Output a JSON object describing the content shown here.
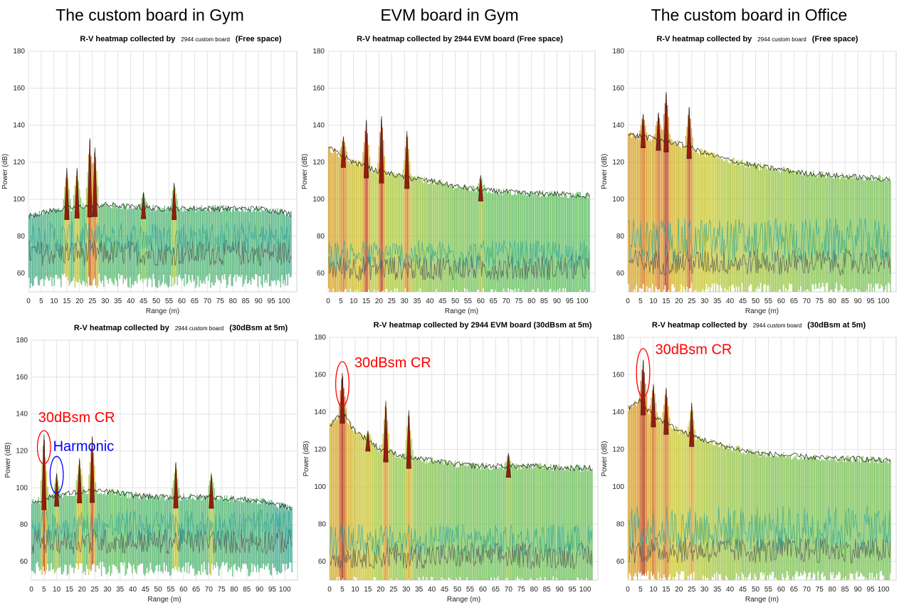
{
  "column_titles": [
    "The custom board in Gym",
    "EVM board in Gym",
    "The custom board in Office"
  ],
  "chart_data": [
    {
      "type": "area",
      "title_left": "R-V heatmap collected by",
      "title_small": "2944 custom board",
      "title_right": "(Free space)",
      "xlabel": "Range (m)",
      "ylabel": "Power (dB)",
      "xlim": [
        0,
        105
      ],
      "ylim": [
        50,
        180
      ],
      "xticks": [
        0,
        5,
        10,
        15,
        20,
        25,
        30,
        35,
        40,
        45,
        50,
        55,
        60,
        65,
        70,
        75,
        80,
        85,
        90,
        95,
        100
      ],
      "yticks": [
        60,
        80,
        100,
        120,
        140,
        160,
        180
      ],
      "grid": true,
      "envelope": {
        "x": [
          0,
          10,
          20,
          30,
          40,
          50,
          60,
          70,
          80,
          90,
          100,
          103
        ],
        "y": [
          91,
          94,
          96,
          97,
          96,
          95,
          95,
          95,
          95,
          95,
          93,
          92
        ]
      },
      "peaks": [
        {
          "x": 15,
          "y": 117
        },
        {
          "x": 19,
          "y": 117
        },
        {
          "x": 24,
          "y": 133
        },
        {
          "x": 26,
          "y": 128
        },
        {
          "x": 57,
          "y": 109
        },
        {
          "x": 45,
          "y": 104
        }
      ],
      "noise_level": [
        70,
        88
      ],
      "annotations": []
    },
    {
      "type": "area",
      "title_left": "R-V heatmap collected by 2944 EVM board (Free space)",
      "title_small": "",
      "title_right": "",
      "xlabel": "Range (m)",
      "ylabel": "Power (dB)",
      "xlim": [
        0,
        105
      ],
      "ylim": [
        50,
        180
      ],
      "xticks": [
        0,
        5,
        10,
        15,
        20,
        25,
        30,
        35,
        40,
        45,
        50,
        55,
        60,
        65,
        70,
        75,
        80,
        85,
        90,
        95,
        100
      ],
      "yticks": [
        60,
        80,
        100,
        120,
        140,
        160,
        180
      ],
      "grid": true,
      "envelope": {
        "x": [
          0,
          5,
          10,
          20,
          30,
          40,
          50,
          60,
          70,
          80,
          90,
          100,
          103
        ],
        "y": [
          128,
          124,
          120,
          115,
          112,
          110,
          107,
          105,
          104,
          103,
          103,
          102,
          102
        ]
      },
      "peaks": [
        {
          "x": 15,
          "y": 143
        },
        {
          "x": 21,
          "y": 145
        },
        {
          "x": 31,
          "y": 137
        },
        {
          "x": 6,
          "y": 134
        },
        {
          "x": 60,
          "y": 113
        }
      ],
      "noise_level": [
        62,
        78
      ],
      "annotations": []
    },
    {
      "type": "area",
      "title_left": "R-V heatmap collected by",
      "title_small": "2944 custom board",
      "title_right": "(Free space)",
      "xlabel": "Range (m)",
      "ylabel": "Power (dB)",
      "xlim": [
        0,
        105
      ],
      "ylim": [
        50,
        180
      ],
      "xticks": [
        0,
        5,
        10,
        15,
        20,
        25,
        30,
        35,
        40,
        45,
        50,
        55,
        60,
        65,
        70,
        75,
        80,
        85,
        90,
        95,
        100
      ],
      "yticks": [
        60,
        80,
        100,
        120,
        140,
        160,
        180
      ],
      "grid": true,
      "envelope": {
        "x": [
          0,
          10,
          20,
          30,
          40,
          50,
          60,
          70,
          80,
          90,
          100,
          103
        ],
        "y": [
          135,
          133,
          130,
          125,
          121,
          118,
          116,
          114,
          113,
          112,
          111,
          111
        ]
      },
      "peaks": [
        {
          "x": 15,
          "y": 158
        },
        {
          "x": 24,
          "y": 150
        },
        {
          "x": 6,
          "y": 146
        },
        {
          "x": 12,
          "y": 147
        }
      ],
      "noise_level": [
        65,
        90
      ],
      "annotations": []
    },
    {
      "type": "area",
      "title_left": "R-V heatmap collected by",
      "title_small": "2944 custom board",
      "title_right": "(30dBsm at 5m)",
      "xlabel": "Range (m)",
      "ylabel": "Power (dB)",
      "xlim": [
        0,
        105
      ],
      "ylim": [
        50,
        180
      ],
      "xticks": [
        0,
        5,
        10,
        15,
        20,
        25,
        30,
        35,
        40,
        45,
        50,
        55,
        60,
        65,
        70,
        75,
        80,
        85,
        90,
        95,
        100
      ],
      "yticks": [
        60,
        80,
        100,
        120,
        140,
        160,
        180
      ],
      "grid": true,
      "envelope": {
        "x": [
          0,
          10,
          20,
          30,
          40,
          50,
          60,
          70,
          80,
          90,
          100,
          103
        ],
        "y": [
          92,
          96,
          98,
          98,
          96,
          95,
          95,
          95,
          94,
          93,
          90,
          88
        ]
      },
      "peaks": [
        {
          "x": 5,
          "y": 129
        },
        {
          "x": 10,
          "y": 108
        },
        {
          "x": 19,
          "y": 116
        },
        {
          "x": 24,
          "y": 128
        },
        {
          "x": 57,
          "y": 114
        },
        {
          "x": 71,
          "y": 108
        }
      ],
      "noise_level": [
        70,
        88
      ],
      "annotations": [
        {
          "text": "30dBsm CR",
          "color": "#ff0000",
          "x": 5,
          "y": 122,
          "rx": 2.6,
          "ry": 9
        },
        {
          "text": "Harmonic",
          "color": "#0000ff",
          "x": 10,
          "y": 107,
          "rx": 2.6,
          "ry": 10
        }
      ]
    },
    {
      "type": "area",
      "title_left": "R-V heatmap collected by 2944 EVM board (30dBsm at 5m)",
      "title_small": "",
      "title_right": "",
      "xlabel": "Range (m)",
      "ylabel": "Power (dB)",
      "xlim": [
        0,
        105
      ],
      "ylim": [
        50,
        180
      ],
      "xticks": [
        0,
        5,
        10,
        15,
        20,
        25,
        30,
        35,
        40,
        45,
        50,
        55,
        60,
        65,
        70,
        75,
        80,
        85,
        90,
        95,
        100
      ],
      "yticks": [
        60,
        80,
        100,
        120,
        140,
        160,
        180
      ],
      "grid": true,
      "envelope": {
        "x": [
          0,
          5,
          10,
          20,
          30,
          40,
          50,
          60,
          70,
          80,
          90,
          100,
          103
        ],
        "y": [
          133,
          140,
          130,
          120,
          116,
          114,
          112,
          111,
          111,
          111,
          110,
          110,
          110
        ]
      },
      "peaks": [
        {
          "x": 5,
          "y": 161
        },
        {
          "x": 22,
          "y": 146
        },
        {
          "x": 31,
          "y": 141
        },
        {
          "x": 15,
          "y": 130
        },
        {
          "x": 70,
          "y": 118
        }
      ],
      "noise_level": [
        62,
        80
      ],
      "annotations": [
        {
          "text": "30dBsm CR",
          "color": "#ff0000",
          "x": 5,
          "y": 155,
          "rx": 2.6,
          "ry": 12
        }
      ]
    },
    {
      "type": "area",
      "title_left": "R-V heatmap collected by",
      "title_small": "2944 custom board",
      "title_right": "(30dBsm at 5m)",
      "xlabel": "Range (m)",
      "ylabel": "Power (dB)",
      "xlim": [
        0,
        105
      ],
      "ylim": [
        50,
        180
      ],
      "xticks": [
        0,
        5,
        10,
        15,
        20,
        25,
        30,
        35,
        40,
        45,
        50,
        55,
        60,
        65,
        70,
        75,
        80,
        85,
        90,
        95,
        100
      ],
      "yticks": [
        60,
        80,
        100,
        120,
        140,
        160,
        180
      ],
      "grid": true,
      "envelope": {
        "x": [
          0,
          5,
          10,
          20,
          30,
          40,
          50,
          60,
          70,
          80,
          90,
          100,
          103
        ],
        "y": [
          142,
          146,
          138,
          130,
          125,
          121,
          118,
          117,
          116,
          115,
          115,
          114,
          114
        ]
      },
      "peaks": [
        {
          "x": 6,
          "y": 168
        },
        {
          "x": 10,
          "y": 155
        },
        {
          "x": 15,
          "y": 153
        },
        {
          "x": 25,
          "y": 145
        }
      ],
      "noise_level": [
        65,
        90
      ],
      "annotations": [
        {
          "text": "30dBsm CR",
          "color": "#ff0000",
          "x": 6,
          "y": 161,
          "rx": 2.6,
          "ry": 13
        }
      ]
    }
  ]
}
